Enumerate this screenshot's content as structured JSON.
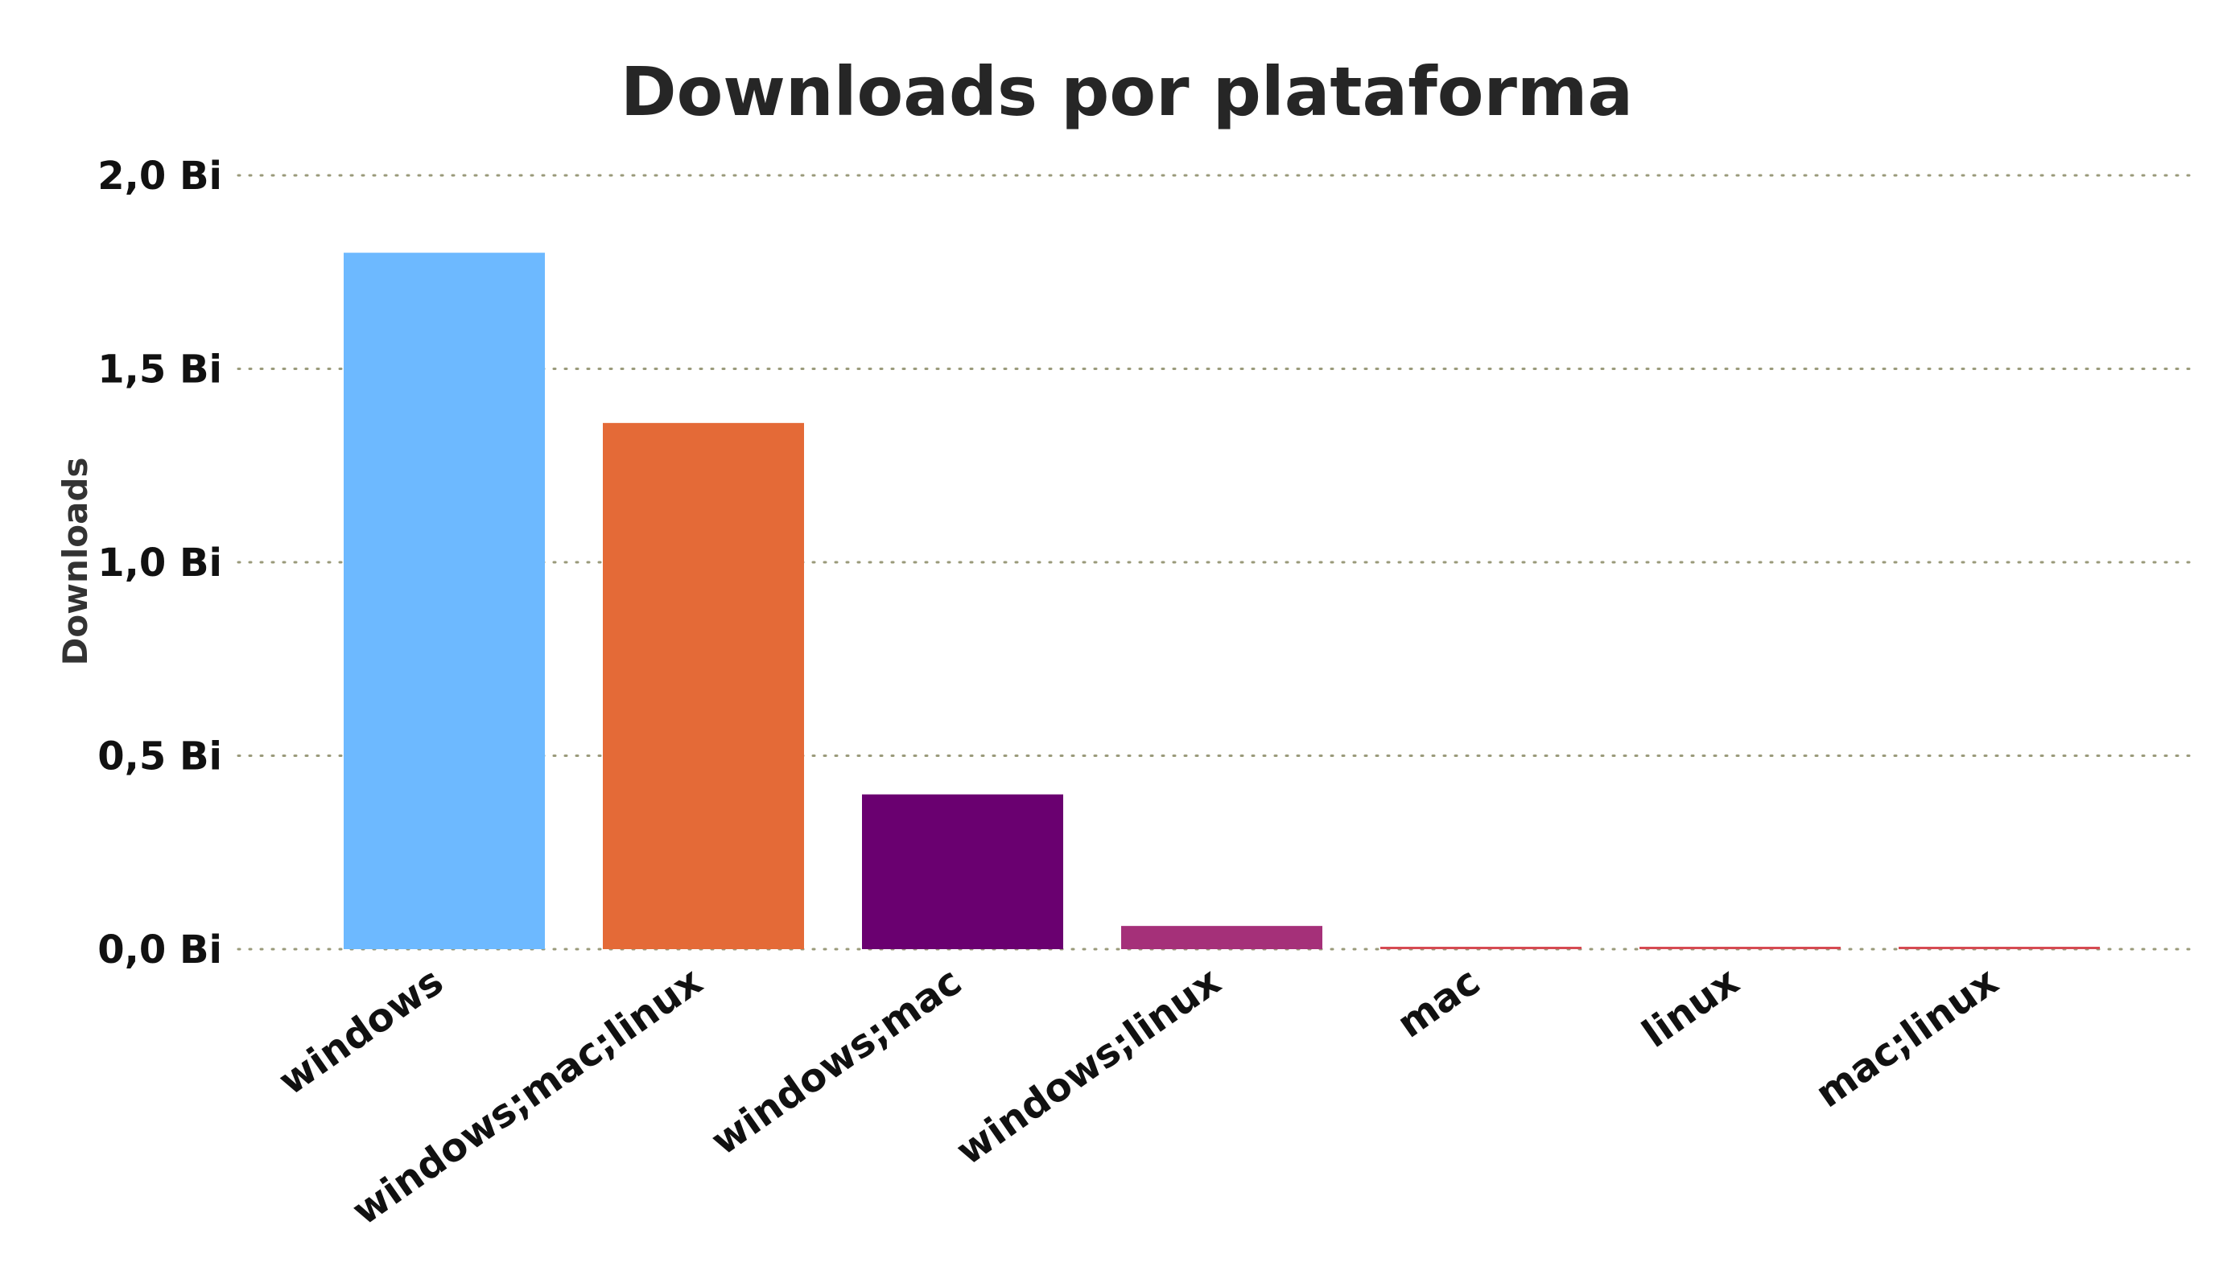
{
  "chart_data": {
    "type": "bar",
    "title": "Downloads por plataforma",
    "xlabel": "",
    "ylabel": "Downloads",
    "categories": [
      "windows",
      "windows;mac;linux",
      "windows;mac",
      "windows;linux",
      "mac",
      "linux",
      "mac;linux"
    ],
    "values": [
      1.8,
      1.36,
      0.4,
      0.06,
      0.004,
      0.003,
      0.003
    ],
    "value_unit": "Bi",
    "ylim": [
      0,
      2.0
    ],
    "y_ticks": [
      {
        "value": 0.0,
        "label": "0,0 Bi"
      },
      {
        "value": 0.5,
        "label": "0,5 Bi"
      },
      {
        "value": 1.0,
        "label": "1,0 Bi"
      },
      {
        "value": 1.5,
        "label": "1,5 Bi"
      },
      {
        "value": 2.0,
        "label": "2,0 Bi"
      }
    ],
    "colors": [
      "#6db9ff",
      "#e46a37",
      "#6a0070",
      "#a53079",
      "#d64a52",
      "#d64a52",
      "#d64a52"
    ],
    "grid": true,
    "grid_style": "dotted",
    "legend": "none"
  }
}
